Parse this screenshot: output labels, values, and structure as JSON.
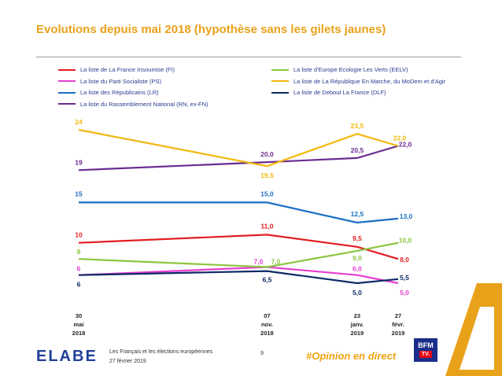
{
  "page": {
    "title": "Evolutions depuis mai 2018 (hypothèse sans les gilets jaunes)",
    "footer_brand": "ELABE",
    "footer_line1": "Les Français et les élections européennes",
    "footer_line2": "27 février 2019",
    "page_number": "9",
    "hashtag": "#Opinion en direct",
    "bfm_label": "BFM",
    "bfm_tv": "TV."
  },
  "colors": {
    "title": "#e8a21a",
    "fi": "#e31e24",
    "ps": "#e63fd0",
    "lr": "#1a6fc4",
    "rn": "#6a2c91",
    "eelv": "#8cc63f",
    "lrem": "#f2b90f",
    "dlf": "#0d2a66",
    "brand": "#1f3f99",
    "accent": "#f0a20f"
  },
  "chart_data": {
    "type": "line",
    "categories": [
      "30 mai 2018",
      "07 nov. 2018",
      "23 janv. 2019",
      "27 févr. 2019"
    ],
    "x_tick_lines": [
      [
        "30",
        "mai",
        "2018"
      ],
      [
        "07",
        "nov.",
        "2018"
      ],
      [
        "23",
        "janv.",
        "2019"
      ],
      [
        "27",
        "févr.",
        "2019"
      ]
    ],
    "x_dates": [
      "2018-05-30",
      "2018-11-07",
      "2019-01-23",
      "2019-02-27"
    ],
    "ylim": [
      3,
      26
    ],
    "grid": false,
    "legend_position": "top",
    "series": [
      {
        "name": "La liste de La France Insoumise (FI)",
        "key": "fi",
        "values": [
          10,
          11.0,
          9.5,
          8.0
        ],
        "labels": [
          "10",
          "11,0",
          "9,5",
          "8,0"
        ]
      },
      {
        "name": "La liste du Parti Socialiste (PS)",
        "key": "ps",
        "values": [
          6,
          7.0,
          6.0,
          5.0
        ],
        "labels": [
          "6",
          "7,0",
          "6,0",
          "5,0"
        ]
      },
      {
        "name": "La liste des Républicains (LR)",
        "key": "lr",
        "values": [
          15,
          15.0,
          12.5,
          13.0
        ],
        "labels": [
          "15",
          "15,0",
          "12,5",
          "13,0"
        ]
      },
      {
        "name": "La liste du Rassemblement National (RN, ex-FN)",
        "key": "rn",
        "values": [
          19,
          20.0,
          20.5,
          22.0
        ],
        "labels": [
          "19",
          "20,0",
          "20,5",
          "22,0"
        ]
      },
      {
        "name": "La liste d'Europe Ecologie Les Verts (EELV)",
        "key": "eelv",
        "values": [
          8,
          7.0,
          9.0,
          10.0
        ],
        "labels": [
          "8",
          "7,0",
          "9,0",
          "10,0"
        ]
      },
      {
        "name": "La liste de La République En Marche, du MoDem et d'Agir",
        "key": "lrem",
        "values": [
          24,
          19.5,
          23.5,
          22.0
        ],
        "labels": [
          "24",
          "19,5",
          "23,5",
          "22,0"
        ]
      },
      {
        "name": "La liste de Debout La France (DLF)",
        "key": "dlf",
        "values": [
          6,
          6.5,
          5.0,
          5.5
        ],
        "labels": [
          "6",
          "6,5",
          "5,0",
          "5,5"
        ]
      }
    ]
  }
}
